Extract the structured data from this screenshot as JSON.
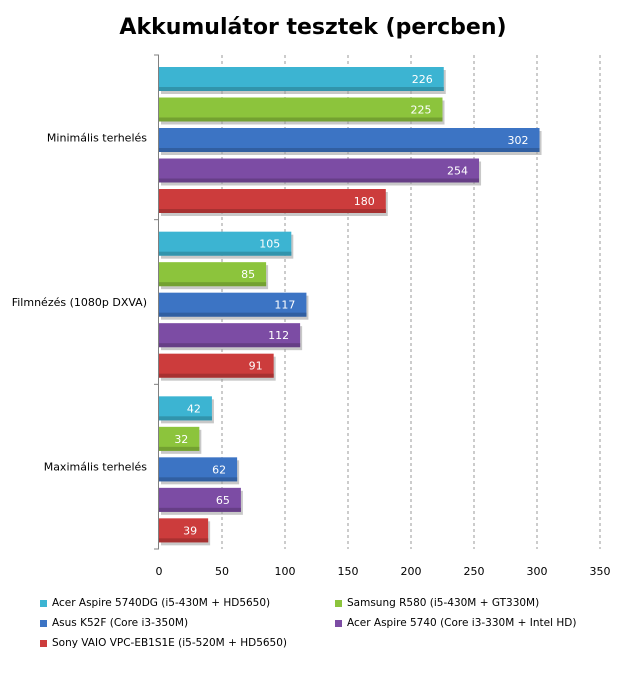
{
  "chart_data": {
    "type": "bar",
    "orientation": "horizontal",
    "title": "Akkumulátor tesztek (percben)",
    "categories": [
      "Minimális terhelés",
      "Filmnézés (1080p DXVA)",
      "Maximális terhelés"
    ],
    "series": [
      {
        "name": "Acer Aspire 5740DG (i5-430M + HD5650)",
        "color": "#3cb4d2",
        "values": [
          226,
          105,
          42
        ]
      },
      {
        "name": "Samsung R580 (i5-430M + GT330M)",
        "color": "#8cc43c",
        "values": [
          225,
          85,
          32
        ]
      },
      {
        "name": "Asus K52F (Core i3-350M)",
        "color": "#3c74c4",
        "values": [
          302,
          117,
          62
        ]
      },
      {
        "name": "Acer Aspire 5740 (Core i3-330M + Intel HD)",
        "color": "#7c4ca4",
        "values": [
          254,
          112,
          65
        ]
      },
      {
        "name": "Sony VAIO VPC-EB1S1E (i5-520M + HD5650)",
        "color": "#cc3c3c",
        "values": [
          180,
          91,
          39
        ]
      }
    ],
    "xlim": [
      0,
      350
    ],
    "xticks": [
      "0",
      "50",
      "100",
      "150",
      "200",
      "250",
      "300",
      "350"
    ],
    "grid": true,
    "data_labels": true,
    "legend_position": "bottom"
  }
}
